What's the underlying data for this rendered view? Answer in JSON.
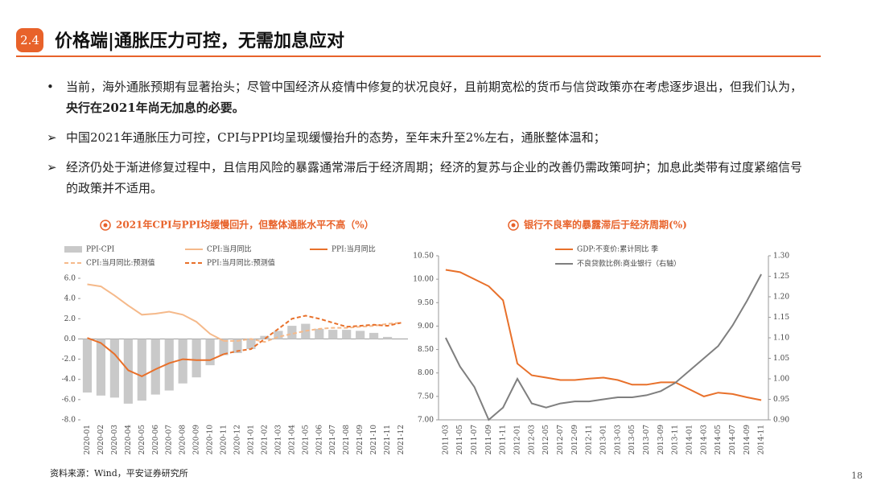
{
  "header": {
    "badge": "2.4",
    "title": "价格端|通胀压力可控，无需加息应对"
  },
  "bullets": [
    {
      "marker": "•",
      "text": "当前，海外通胀预期有显著抬头；尽管中国经济从疫情中修复的状况良好，且前期宽松的货币与信贷政策亦在考虑逐步退出，但我们认为，",
      "bold": "央行在2021年尚无加息的必要。"
    },
    {
      "marker": "➢",
      "text": "中国2021年通胀压力可控，CPI与PPI均呈现缓慢抬升的态势，至年末升至2%左右，通胀整体温和；"
    },
    {
      "marker": "➢",
      "text": "经济仍处于渐进修复过程中，且信用风险的暴露通常滞后于经济周期；经济的复苏与企业的改善仍需政策呵护；加息此类带有过度紧缩信号的政策并不适用。"
    }
  ],
  "chart_data": [
    {
      "type": "bar",
      "title": "2021年CPI与PPI均缓慢回升，但整体通胀水平不高（%）",
      "categories": [
        "2020-01",
        "2020-02",
        "2020-03",
        "2020-04",
        "2020-05",
        "2020-06",
        "2020-07",
        "2020-08",
        "2020-09",
        "2020-10",
        "2020-11",
        "2020-12",
        "2021-01",
        "2021-02",
        "2021-03",
        "2021-04",
        "2021-05",
        "2021-06",
        "2021-07",
        "2021-08",
        "2021-09",
        "2021-10",
        "2021-11",
        "2021-12"
      ],
      "series": [
        {
          "name": "PPI-CPI",
          "type": "bar",
          "color": "#c9c9c9",
          "values": [
            -5.3,
            -5.6,
            -5.8,
            -6.4,
            -6.1,
            -5.5,
            -5.1,
            -4.4,
            -3.8,
            -2.6,
            -1.6,
            -1.4,
            -1.0,
            0.3,
            0.8,
            1.3,
            1.5,
            1.0,
            0.9,
            0.9,
            0.8,
            0.6,
            0.2,
            0.0
          ]
        },
        {
          "name": "CPI:当月同比",
          "type": "line",
          "color": "#f5b98a",
          "values": [
            5.4,
            5.2,
            4.3,
            3.3,
            2.4,
            2.5,
            2.7,
            2.4,
            1.7,
            0.5,
            -0.2,
            null,
            null,
            null,
            null,
            null,
            null,
            null,
            null,
            null,
            null,
            null,
            null,
            null
          ]
        },
        {
          "name": "PPI:当月同比",
          "type": "line",
          "color": "#e8702a",
          "values": [
            0.1,
            -0.4,
            -1.5,
            -3.1,
            -3.7,
            -3.0,
            -2.4,
            -2.0,
            -2.1,
            -2.1,
            -1.5,
            null,
            null,
            null,
            null,
            null,
            null,
            null,
            null,
            null,
            null,
            null,
            null,
            null
          ]
        },
        {
          "name": "CPI:当月同比:预测值",
          "type": "line",
          "dashed": true,
          "color": "#f5b98a",
          "values": [
            null,
            null,
            null,
            null,
            null,
            null,
            null,
            null,
            null,
            null,
            -0.2,
            -0.2,
            0.0,
            -0.3,
            0.2,
            0.5,
            0.8,
            1.0,
            1.1,
            1.1,
            1.2,
            1.3,
            1.5,
            1.6
          ]
        },
        {
          "name": "PPI:当月同比:预测值",
          "type": "line",
          "dashed": true,
          "color": "#e8702a",
          "values": [
            null,
            null,
            null,
            null,
            null,
            null,
            null,
            null,
            null,
            null,
            -1.5,
            -1.2,
            -1.0,
            0.0,
            1.0,
            2.0,
            2.3,
            2.0,
            1.6,
            1.2,
            1.3,
            1.4,
            1.3,
            1.6
          ]
        }
      ],
      "ylim": [
        -8,
        6
      ],
      "yticks": [
        {
          "value": -8,
          "label": "-8.0"
        },
        {
          "value": -6,
          "label": "-6.0"
        },
        {
          "value": -4,
          "label": "-4.0"
        },
        {
          "value": -2,
          "label": "-2.0"
        },
        {
          "value": 0,
          "label": "0.0"
        },
        {
          "value": 2,
          "label": "2.0"
        },
        {
          "value": 4,
          "label": "4.0"
        },
        {
          "value": 6,
          "label": "6.0"
        }
      ]
    },
    {
      "type": "line",
      "title": "银行不良率的暴露滞后于经济周期(%)",
      "categories": [
        "2011-03",
        "2011-05",
        "2011-07",
        "2011-09",
        "2011-11",
        "2012-01",
        "2012-03",
        "2012-05",
        "2012-07",
        "2012-09",
        "2012-11",
        "2013-01",
        "2013-03",
        "2013-05",
        "2013-07",
        "2013-09",
        "2013-11",
        "2014-01",
        "2014-03",
        "2014-05",
        "2014-07",
        "2014-09",
        "2014-11"
      ],
      "series": [
        {
          "name": "GDP:不变价:累计同比 季",
          "color": "#e8702a",
          "values": [
            10.2,
            10.15,
            10.0,
            9.85,
            9.55,
            8.2,
            7.95,
            7.9,
            7.85,
            7.85,
            7.88,
            7.9,
            7.85,
            7.75,
            7.75,
            7.8,
            7.8,
            7.65,
            7.5,
            7.58,
            7.55,
            7.48,
            7.42
          ]
        },
        {
          "name": "不良贷款比例:商业银行（右轴）",
          "color": "#7f7f7f",
          "axis": "y2",
          "values": [
            1.1,
            1.03,
            0.98,
            0.9,
            0.93,
            1.0,
            0.94,
            0.93,
            0.94,
            0.945,
            0.945,
            0.95,
            0.955,
            0.955,
            0.96,
            0.97,
            0.99,
            1.02,
            1.05,
            1.08,
            1.13,
            1.19,
            1.255
          ]
        }
      ],
      "ylim": [
        7,
        10.5
      ],
      "yticks": [
        {
          "value": 7,
          "label": "7.00"
        },
        {
          "value": 7.5,
          "label": "7.50"
        },
        {
          "value": 8,
          "label": "8.00"
        },
        {
          "value": 8.5,
          "label": "8.50"
        },
        {
          "value": 9,
          "label": "9.00"
        },
        {
          "value": 9.5,
          "label": "9.50"
        },
        {
          "value": 10,
          "label": "10.00"
        },
        {
          "value": 10.5,
          "label": "10.50"
        }
      ],
      "y2lim": [
        0.9,
        1.3
      ],
      "y2ticks": [
        {
          "value": 0.9,
          "label": "0.90"
        },
        {
          "value": 0.95,
          "label": "0.95"
        },
        {
          "value": 1.0,
          "label": "1.00"
        },
        {
          "value": 1.05,
          "label": "1.05"
        },
        {
          "value": 1.1,
          "label": "1.10"
        },
        {
          "value": 1.15,
          "label": "1.15"
        },
        {
          "value": 1.2,
          "label": "1.20"
        },
        {
          "value": 1.25,
          "label": "1.25"
        },
        {
          "value": 1.3,
          "label": "1.30"
        }
      ]
    }
  ],
  "source": "资料来源：Wind，平安证券研究所",
  "page_number": "18"
}
